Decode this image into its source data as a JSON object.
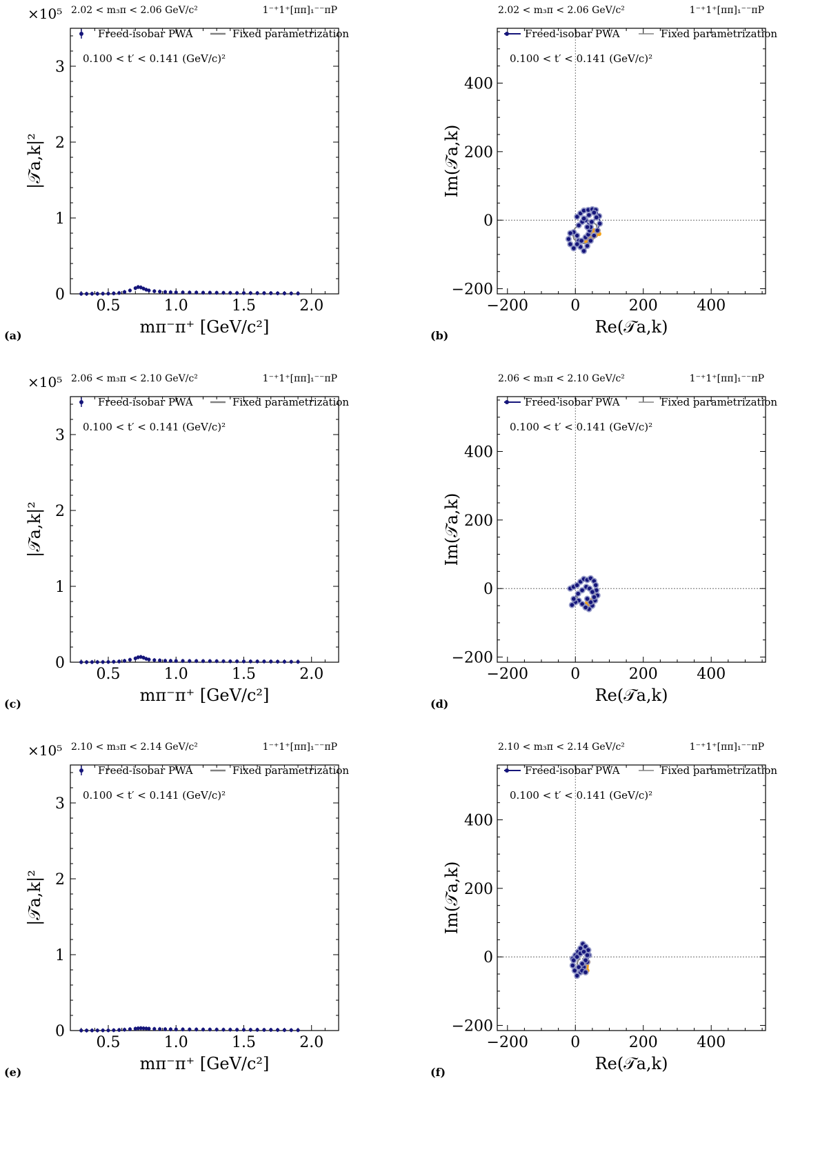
{
  "figure": {
    "panels": [
      {
        "id": "a",
        "kind": "intensity",
        "panel_label": "(a)",
        "header_left": "2.02 < m₃π < 2.06 GeV/c²",
        "header_right": "1⁻⁺1⁺[ππ]₁⁻⁻πP",
        "tprime_text": "0.100 < t′ < 0.141 (GeV/c)²",
        "legend": [
          "Freed-isobar PWA",
          "Fixed parametrization"
        ],
        "xlabel": "mπ⁻π⁺ [GeV/c²]",
        "ylabel": "|𝒯a,k|²",
        "multiplier": "×10⁵",
        "xticks": [
          "0.5",
          "1.0",
          "1.5",
          "2.0"
        ],
        "yticks": [
          "0",
          "1",
          "2",
          "3"
        ]
      },
      {
        "id": "b",
        "kind": "argand",
        "panel_label": "(b)",
        "header_left": "2.02 < m₃π < 2.06 GeV/c²",
        "header_right": "1⁻⁺1⁺[ππ]₁⁻⁻πP",
        "tprime_text": "0.100 < t′ < 0.141 (GeV/c)²",
        "legend": [
          "Freed-isobar PWA",
          "Fixed parametrization"
        ],
        "xlabel": "Re(𝒯a,k)",
        "ylabel": "Im(𝒯a,k)",
        "xticks": [
          "−200",
          "0",
          "200",
          "400"
        ],
        "yticks": [
          "−200",
          "0",
          "200",
          "400"
        ]
      },
      {
        "id": "c",
        "kind": "intensity",
        "panel_label": "(c)",
        "header_left": "2.06 < m₃π < 2.10 GeV/c²",
        "header_right": "1⁻⁺1⁺[ππ]₁⁻⁻πP",
        "tprime_text": "0.100 < t′ < 0.141 (GeV/c)²",
        "legend": [
          "Freed-isobar PWA",
          "Fixed parametrization"
        ],
        "xlabel": "mπ⁻π⁺ [GeV/c²]",
        "ylabel": "|𝒯a,k|²",
        "multiplier": "×10⁵",
        "xticks": [
          "0.5",
          "1.0",
          "1.5",
          "2.0"
        ],
        "yticks": [
          "0",
          "1",
          "2",
          "3"
        ]
      },
      {
        "id": "d",
        "kind": "argand",
        "panel_label": "(d)",
        "header_left": "2.06 < m₃π < 2.10 GeV/c²",
        "header_right": "1⁻⁺1⁺[ππ]₁⁻⁻πP",
        "tprime_text": "0.100 < t′ < 0.141 (GeV/c)²",
        "legend": [
          "Freed-isobar PWA",
          "Fixed parametrization"
        ],
        "xlabel": "Re(𝒯a,k)",
        "ylabel": "Im(𝒯a,k)",
        "xticks": [
          "−200",
          "0",
          "200",
          "400"
        ],
        "yticks": [
          "−200",
          "0",
          "200",
          "400"
        ]
      },
      {
        "id": "e",
        "kind": "intensity",
        "panel_label": "(e)",
        "header_left": "2.10 < m₃π < 2.14 GeV/c²",
        "header_right": "1⁻⁺1⁺[ππ]₁⁻⁻πP",
        "tprime_text": "0.100 < t′ < 0.141 (GeV/c)²",
        "legend": [
          "Freed-isobar PWA",
          "Fixed parametrization"
        ],
        "xlabel": "mπ⁻π⁺ [GeV/c²]",
        "ylabel": "|𝒯a,k|²",
        "multiplier": "×10⁵",
        "xticks": [
          "0.5",
          "1.0",
          "1.5",
          "2.0"
        ],
        "yticks": [
          "0",
          "1",
          "2",
          "3"
        ]
      },
      {
        "id": "f",
        "kind": "argand",
        "panel_label": "(f)",
        "header_left": "2.10 < m₃π < 2.14 GeV/c²",
        "header_right": "1⁻⁺1⁺[ππ]₁⁻⁻πP",
        "tprime_text": "0.100 < t′ < 0.141 (GeV/c)²",
        "legend": [
          "Freed-isobar PWA",
          "Fixed parametrization"
        ],
        "xlabel": "Re(𝒯a,k)",
        "ylabel": "Im(𝒯a,k)",
        "xticks": [
          "−200",
          "0",
          "200",
          "400"
        ],
        "yticks": [
          "−200",
          "0",
          "200",
          "400"
        ]
      }
    ]
  },
  "colors": {
    "data_points": "#15157a",
    "data_halo": "#8a8fc2",
    "model": "#808080",
    "highlight": "#f5a31a",
    "reference_lines": "#555555"
  },
  "chart_data": [
    {
      "panel": "a",
      "type": "scatter",
      "xlim": [
        0.22,
        2.2
      ],
      "ylim": [
        0,
        3.5
      ],
      "y_scale_factor": 100000,
      "series": [
        {
          "name": "Freed-isobar PWA",
          "x": [
            0.3,
            0.34,
            0.38,
            0.42,
            0.46,
            0.5,
            0.54,
            0.58,
            0.62,
            0.66,
            0.7,
            0.72,
            0.74,
            0.76,
            0.78,
            0.8,
            0.84,
            0.88,
            0.92,
            0.96,
            1.0,
            1.05,
            1.1,
            1.15,
            1.2,
            1.25,
            1.3,
            1.35,
            1.4,
            1.45,
            1.5,
            1.55,
            1.6,
            1.65,
            1.7,
            1.75,
            1.8,
            1.85,
            1.9
          ],
          "y": [
            0.001,
            0.001,
            0.002,
            0.002,
            0.003,
            0.004,
            0.007,
            0.012,
            0.025,
            0.045,
            0.075,
            0.09,
            0.085,
            0.07,
            0.055,
            0.045,
            0.035,
            0.03,
            0.025,
            0.022,
            0.02,
            0.02,
            0.018,
            0.018,
            0.016,
            0.016,
            0.015,
            0.014,
            0.013,
            0.012,
            0.012,
            0.011,
            0.01,
            0.01,
            0.009,
            0.008,
            0.007,
            0.006,
            0.005
          ]
        }
      ]
    },
    {
      "panel": "b",
      "type": "scatter",
      "xlim": [
        -230,
        560
      ],
      "ylim": [
        -215,
        560
      ],
      "series": [
        {
          "name": "Freed-isobar PWA",
          "x": [
            5,
            15,
            25,
            38,
            50,
            60,
            70,
            72,
            65,
            55,
            45,
            35,
            25,
            15,
            10,
            5,
            -5,
            -15,
            -20,
            -15,
            -5,
            5,
            18,
            30,
            38,
            42,
            45,
            30,
            20,
            10,
            25,
            40,
            55,
            62,
            48,
            35
          ],
          "y": [
            10,
            20,
            28,
            30,
            32,
            30,
            12,
            -10,
            -30,
            -45,
            -60,
            -75,
            -90,
            -78,
            -60,
            -45,
            -35,
            -38,
            -55,
            -70,
            -82,
            -70,
            -60,
            -50,
            -42,
            -30,
            -20,
            0,
            -5,
            -15,
            5,
            15,
            22,
            8,
            -5,
            -20
          ]
        },
        {
          "name": "Fixed parametrization",
          "x": [
            25,
            10,
            -2,
            -8,
            -4,
            8,
            25,
            45,
            60,
            66,
            62,
            50,
            35,
            25
          ],
          "y": [
            -5,
            -12,
            -25,
            -40,
            -55,
            -65,
            -68,
            -62,
            -48,
            -30,
            -14,
            -4,
            -2,
            -5
          ]
        },
        {
          "name": "highlight",
          "x": [
            30,
            40,
            50,
            60,
            70,
            68,
            55,
            45,
            40,
            50,
            65
          ],
          "y": [
            -60,
            -55,
            -50,
            -45,
            -40,
            -30,
            -30,
            -35,
            -45,
            -50,
            -35
          ]
        }
      ]
    },
    {
      "panel": "c",
      "type": "scatter",
      "xlim": [
        0.22,
        2.2
      ],
      "ylim": [
        0,
        3.5
      ],
      "y_scale_factor": 100000,
      "series": [
        {
          "name": "Freed-isobar PWA",
          "x": [
            0.3,
            0.34,
            0.38,
            0.42,
            0.46,
            0.5,
            0.54,
            0.58,
            0.62,
            0.66,
            0.7,
            0.72,
            0.74,
            0.76,
            0.78,
            0.8,
            0.84,
            0.88,
            0.92,
            0.96,
            1.0,
            1.05,
            1.1,
            1.15,
            1.2,
            1.25,
            1.3,
            1.35,
            1.4,
            1.45,
            1.5,
            1.55,
            1.6,
            1.65,
            1.7,
            1.75,
            1.8,
            1.85,
            1.9
          ],
          "y": [
            0.001,
            0.001,
            0.002,
            0.002,
            0.003,
            0.004,
            0.006,
            0.01,
            0.018,
            0.032,
            0.05,
            0.065,
            0.07,
            0.06,
            0.045,
            0.035,
            0.028,
            0.024,
            0.02,
            0.018,
            0.017,
            0.017,
            0.016,
            0.016,
            0.015,
            0.015,
            0.014,
            0.013,
            0.012,
            0.012,
            0.011,
            0.011,
            0.01,
            0.01,
            0.009,
            0.008,
            0.007,
            0.006,
            0.005
          ]
        }
      ]
    },
    {
      "panel": "d",
      "type": "scatter",
      "xlim": [
        -230,
        560
      ],
      "ylim": [
        -215,
        560
      ],
      "series": [
        {
          "name": "Freed-isobar PWA",
          "x": [
            -15,
            -5,
            5,
            15,
            25,
            35,
            45,
            55,
            60,
            62,
            65,
            58,
            50,
            40,
            30,
            20,
            10,
            0,
            -10,
            -5,
            8,
            20,
            32,
            42,
            50,
            55,
            45,
            35
          ],
          "y": [
            0,
            5,
            10,
            20,
            28,
            25,
            30,
            22,
            10,
            -5,
            -20,
            -35,
            -50,
            -60,
            -55,
            -45,
            -35,
            -40,
            -48,
            -30,
            -15,
            -5,
            5,
            0,
            -10,
            -25,
            -40,
            -30
          ]
        },
        {
          "name": "Fixed parametrization",
          "x": [
            20,
            10,
            5,
            8,
            20,
            35,
            50,
            58,
            55,
            45,
            30,
            20
          ],
          "y": [
            -5,
            -12,
            -25,
            -38,
            -45,
            -45,
            -35,
            -20,
            -8,
            -2,
            -2,
            -5
          ]
        },
        {
          "name": "highlight",
          "x": [
            35,
            45,
            55,
            60,
            50,
            40
          ],
          "y": [
            -40,
            -35,
            -30,
            -20,
            -45,
            -48
          ]
        }
      ]
    },
    {
      "panel": "f",
      "type": "scatter",
      "xlim": [
        -230,
        560
      ],
      "ylim": [
        -215,
        560
      ],
      "series": [
        {
          "name": "Freed-isobar PWA",
          "x": [
            -8,
            0,
            8,
            15,
            22,
            30,
            38,
            40,
            35,
            25,
            15,
            5,
            -2,
            -8,
            -5,
            5,
            15,
            25,
            35,
            30,
            20,
            10,
            20,
            30
          ],
          "y": [
            -5,
            5,
            15,
            25,
            38,
            30,
            20,
            5,
            -15,
            -30,
            -45,
            -55,
            -40,
            -25,
            -10,
            0,
            10,
            15,
            5,
            -10,
            -20,
            -30,
            -40,
            -45
          ]
        },
        {
          "name": "Fixed parametrization",
          "x": [
            15,
            8,
            5,
            10,
            20,
            30,
            35,
            30,
            20
          ],
          "y": [
            -5,
            -10,
            -20,
            -30,
            -35,
            -30,
            -18,
            -8,
            -5
          ]
        },
        {
          "name": "highlight",
          "x": [
            25,
            32,
            38,
            35,
            28
          ],
          "y": [
            -30,
            -25,
            -15,
            -40,
            -45
          ]
        }
      ]
    },
    {
      "panel": "e",
      "type": "scatter",
      "xlim": [
        0.22,
        2.2
      ],
      "ylim": [
        0,
        3.5
      ],
      "y_scale_factor": 100000,
      "series": [
        {
          "name": "Freed-isobar PWA",
          "x": [
            0.3,
            0.34,
            0.38,
            0.42,
            0.46,
            0.5,
            0.54,
            0.58,
            0.62,
            0.66,
            0.7,
            0.72,
            0.74,
            0.76,
            0.78,
            0.8,
            0.84,
            0.88,
            0.92,
            0.96,
            1.0,
            1.05,
            1.1,
            1.15,
            1.2,
            1.25,
            1.3,
            1.35,
            1.4,
            1.45,
            1.5,
            1.55,
            1.6,
            1.65,
            1.7,
            1.75,
            1.8,
            1.85,
            1.9
          ],
          "y": [
            0.001,
            0.001,
            0.002,
            0.002,
            0.003,
            0.003,
            0.005,
            0.008,
            0.012,
            0.018,
            0.025,
            0.03,
            0.032,
            0.03,
            0.028,
            0.025,
            0.022,
            0.02,
            0.018,
            0.017,
            0.016,
            0.016,
            0.015,
            0.015,
            0.014,
            0.014,
            0.013,
            0.012,
            0.012,
            0.011,
            0.011,
            0.01,
            0.01,
            0.009,
            0.009,
            0.008,
            0.007,
            0.006,
            0.005
          ]
        }
      ]
    }
  ]
}
